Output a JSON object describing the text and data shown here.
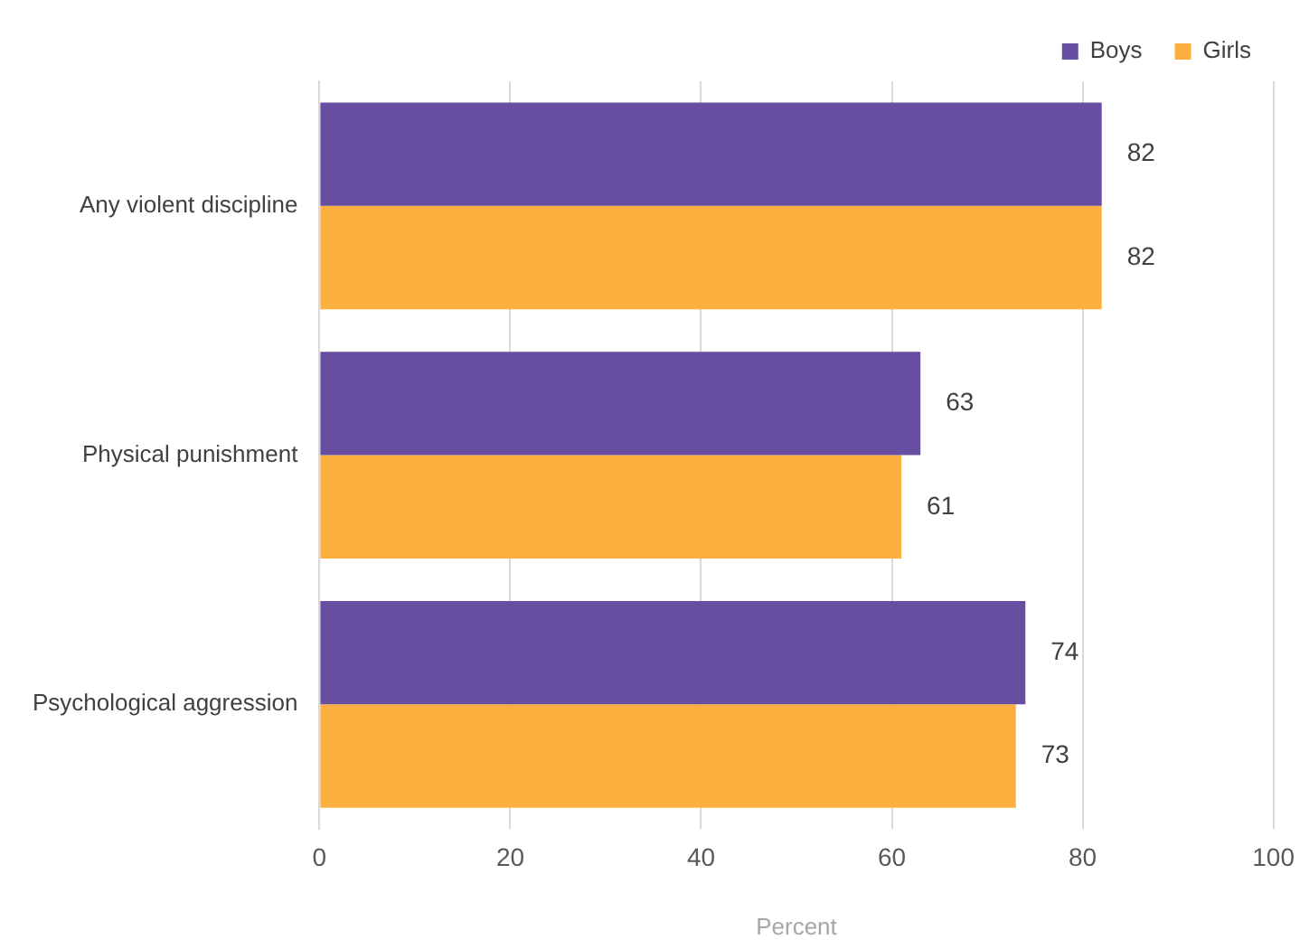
{
  "chart_data": {
    "type": "bar",
    "orientation": "horizontal",
    "xlabel": "Percent",
    "categories": [
      "Any violent discipline",
      "Physical punishment",
      "Psychological aggression"
    ],
    "series": [
      {
        "name": "Boys",
        "color": "#674ea0",
        "values": [
          82,
          63,
          74
        ]
      },
      {
        "name": "Girls",
        "color": "#fbb040",
        "values": [
          82,
          61,
          73
        ]
      }
    ],
    "xlim": [
      0,
      100
    ],
    "xticks": [
      0,
      20,
      40,
      60,
      80,
      100
    ],
    "grid": "x",
    "legend": "top right",
    "data_labels": true
  }
}
